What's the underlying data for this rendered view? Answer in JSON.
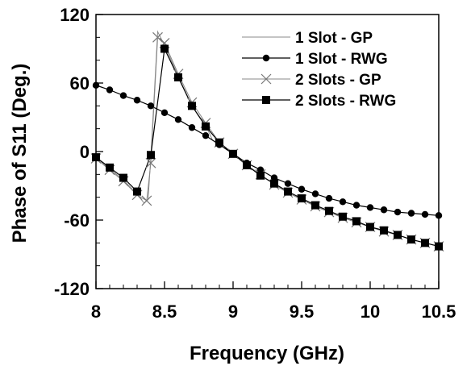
{
  "chart_data": {
    "type": "line",
    "xlabel": "Frequency (GHz)",
    "ylabel": "Phase of S11 (Deg.)",
    "xlim": [
      8,
      10.5
    ],
    "ylim": [
      -120,
      120
    ],
    "x_ticks": [
      "8",
      "8.5",
      "9",
      "9.5",
      "10",
      "10.5"
    ],
    "y_ticks": [
      "120",
      "60",
      "0",
      "-60",
      "-120"
    ],
    "x_tick_values": [
      8,
      8.5,
      9,
      9.5,
      10,
      10.5
    ],
    "y_tick_values": [
      120,
      60,
      0,
      -60,
      -120
    ],
    "grid": false,
    "legend_position": "top-right",
    "series": [
      {
        "name": "1 Slot - GP",
        "marker": "none",
        "line_color": "#888888",
        "x": [
          8,
          8.1,
          8.2,
          8.3,
          8.35,
          8.38,
          8.4,
          8.45,
          8.5,
          8.6,
          8.7,
          8.8,
          8.85,
          8.9,
          9.0,
          9.1,
          9.2,
          9.3,
          9.4,
          9.5,
          9.6,
          9.7,
          9.8,
          9.9,
          10.0,
          10.1,
          10.2,
          10.3,
          10.4,
          10.5
        ],
        "y": [
          -5,
          -15,
          -25,
          -37,
          -45,
          -42,
          -5,
          105,
          93,
          66,
          40,
          23,
          10,
          7,
          -2,
          -12,
          -20,
          -29,
          -36,
          -42,
          -48,
          -53,
          -58,
          -62,
          -66,
          -70,
          -73,
          -77,
          -80,
          -83
        ]
      },
      {
        "name": "1 Slot - RWG",
        "marker": "circle",
        "line_color": "#000000",
        "x": [
          8,
          8.1,
          8.2,
          8.3,
          8.4,
          8.5,
          8.6,
          8.7,
          8.8,
          8.9,
          9.0,
          9.1,
          9.2,
          9.3,
          9.4,
          9.5,
          9.6,
          9.7,
          9.8,
          9.9,
          10.0,
          10.1,
          10.2,
          10.3,
          10.4,
          10.5
        ],
        "y": [
          58,
          54,
          49,
          45,
          40,
          34,
          28,
          21,
          14,
          6,
          -2,
          -10,
          -16,
          -23,
          -28,
          -33,
          -37,
          -41,
          -44,
          -47,
          -49,
          -51,
          -53,
          -54,
          -55,
          -56
        ]
      },
      {
        "name": "2 Slots - GP",
        "marker": "x",
        "line_color": "#888888",
        "x": [
          8,
          8.1,
          8.2,
          8.3,
          8.37,
          8.4,
          8.45,
          8.5,
          8.6,
          8.7,
          8.8,
          8.9,
          9.0,
          9.1,
          9.2,
          9.3,
          9.4,
          9.5,
          9.6,
          9.7,
          9.8,
          9.9,
          10.0,
          10.1,
          10.2,
          10.3,
          10.4,
          10.5
        ],
        "y": [
          -6,
          -16,
          -26,
          -38,
          -43,
          -10,
          100,
          95,
          68,
          43,
          25,
          8,
          -2,
          -12,
          -20,
          -29,
          -36,
          -42,
          -48,
          -53,
          -58,
          -62,
          -66,
          -70,
          -73,
          -77,
          -80,
          -83
        ]
      },
      {
        "name": "2 Slots - RWG",
        "marker": "square",
        "line_color": "#000000",
        "x": [
          8,
          8.1,
          8.2,
          8.3,
          8.4,
          8.5,
          8.6,
          8.7,
          8.8,
          8.9,
          9.0,
          9.1,
          9.2,
          9.3,
          9.4,
          9.5,
          9.6,
          9.7,
          9.8,
          9.9,
          10.0,
          10.1,
          10.2,
          10.3,
          10.4,
          10.5
        ],
        "y": [
          -5,
          -14,
          -23,
          -35,
          -3,
          90,
          65,
          40,
          22,
          8,
          -2,
          -12,
          -21,
          -28,
          -35,
          -41,
          -47,
          -52,
          -57,
          -61,
          -66,
          -69,
          -73,
          -77,
          -80,
          -83
        ]
      }
    ]
  }
}
